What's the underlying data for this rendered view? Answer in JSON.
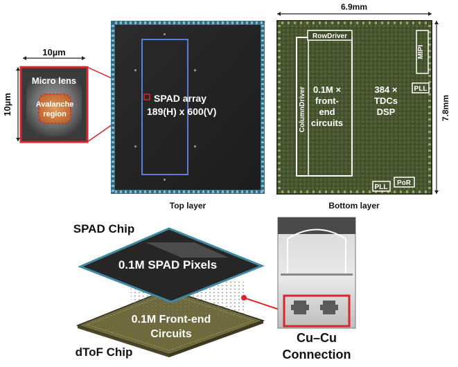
{
  "microlens": {
    "width_label": "10µm",
    "height_label": "10µm",
    "title": "Micro lens",
    "avalanche_line1": "Avalanche",
    "avalanche_line2": "region"
  },
  "top_layer": {
    "caption": "Top layer",
    "spad_line1": "SPAD array",
    "spad_line2": "189(H) x 600(V)"
  },
  "bottom_layer": {
    "caption": "Bottom layer",
    "width_label": "6.9mm",
    "height_label": "7.8mm",
    "row_driver": "RowDriver",
    "column_driver": "ColumnDriver",
    "mipi": "MIPI",
    "pll_top": "PLL",
    "pll_bottom": "PLL",
    "por": "PoR",
    "frontend_line1": "0.1M ×",
    "frontend_line2": "front-",
    "frontend_line3": "end",
    "frontend_line4": "circuits",
    "tdc_line1": "384 ×",
    "tdc_line2": "TDCs",
    "tdc_line3": "DSP"
  },
  "stack": {
    "spad_chip_label": "SPAD Chip",
    "spad_pixels": "0.1M SPAD Pixels",
    "frontend_line1": "0.1M Front-end",
    "frontend_line2": "Circuits",
    "dtof_chip_label": "dToF Chip",
    "cu_line1": "Cu–Cu",
    "cu_line2": "Connection"
  },
  "colors": {
    "highlight_red": "#d9262b",
    "spad_outline_blue": "#5c7dd8",
    "die_teal": "#2e6f86",
    "bottom_die_green": "#4a5a33",
    "chip_dark": "#2a2a2a",
    "dtof_olive": "#6f6a3e"
  }
}
